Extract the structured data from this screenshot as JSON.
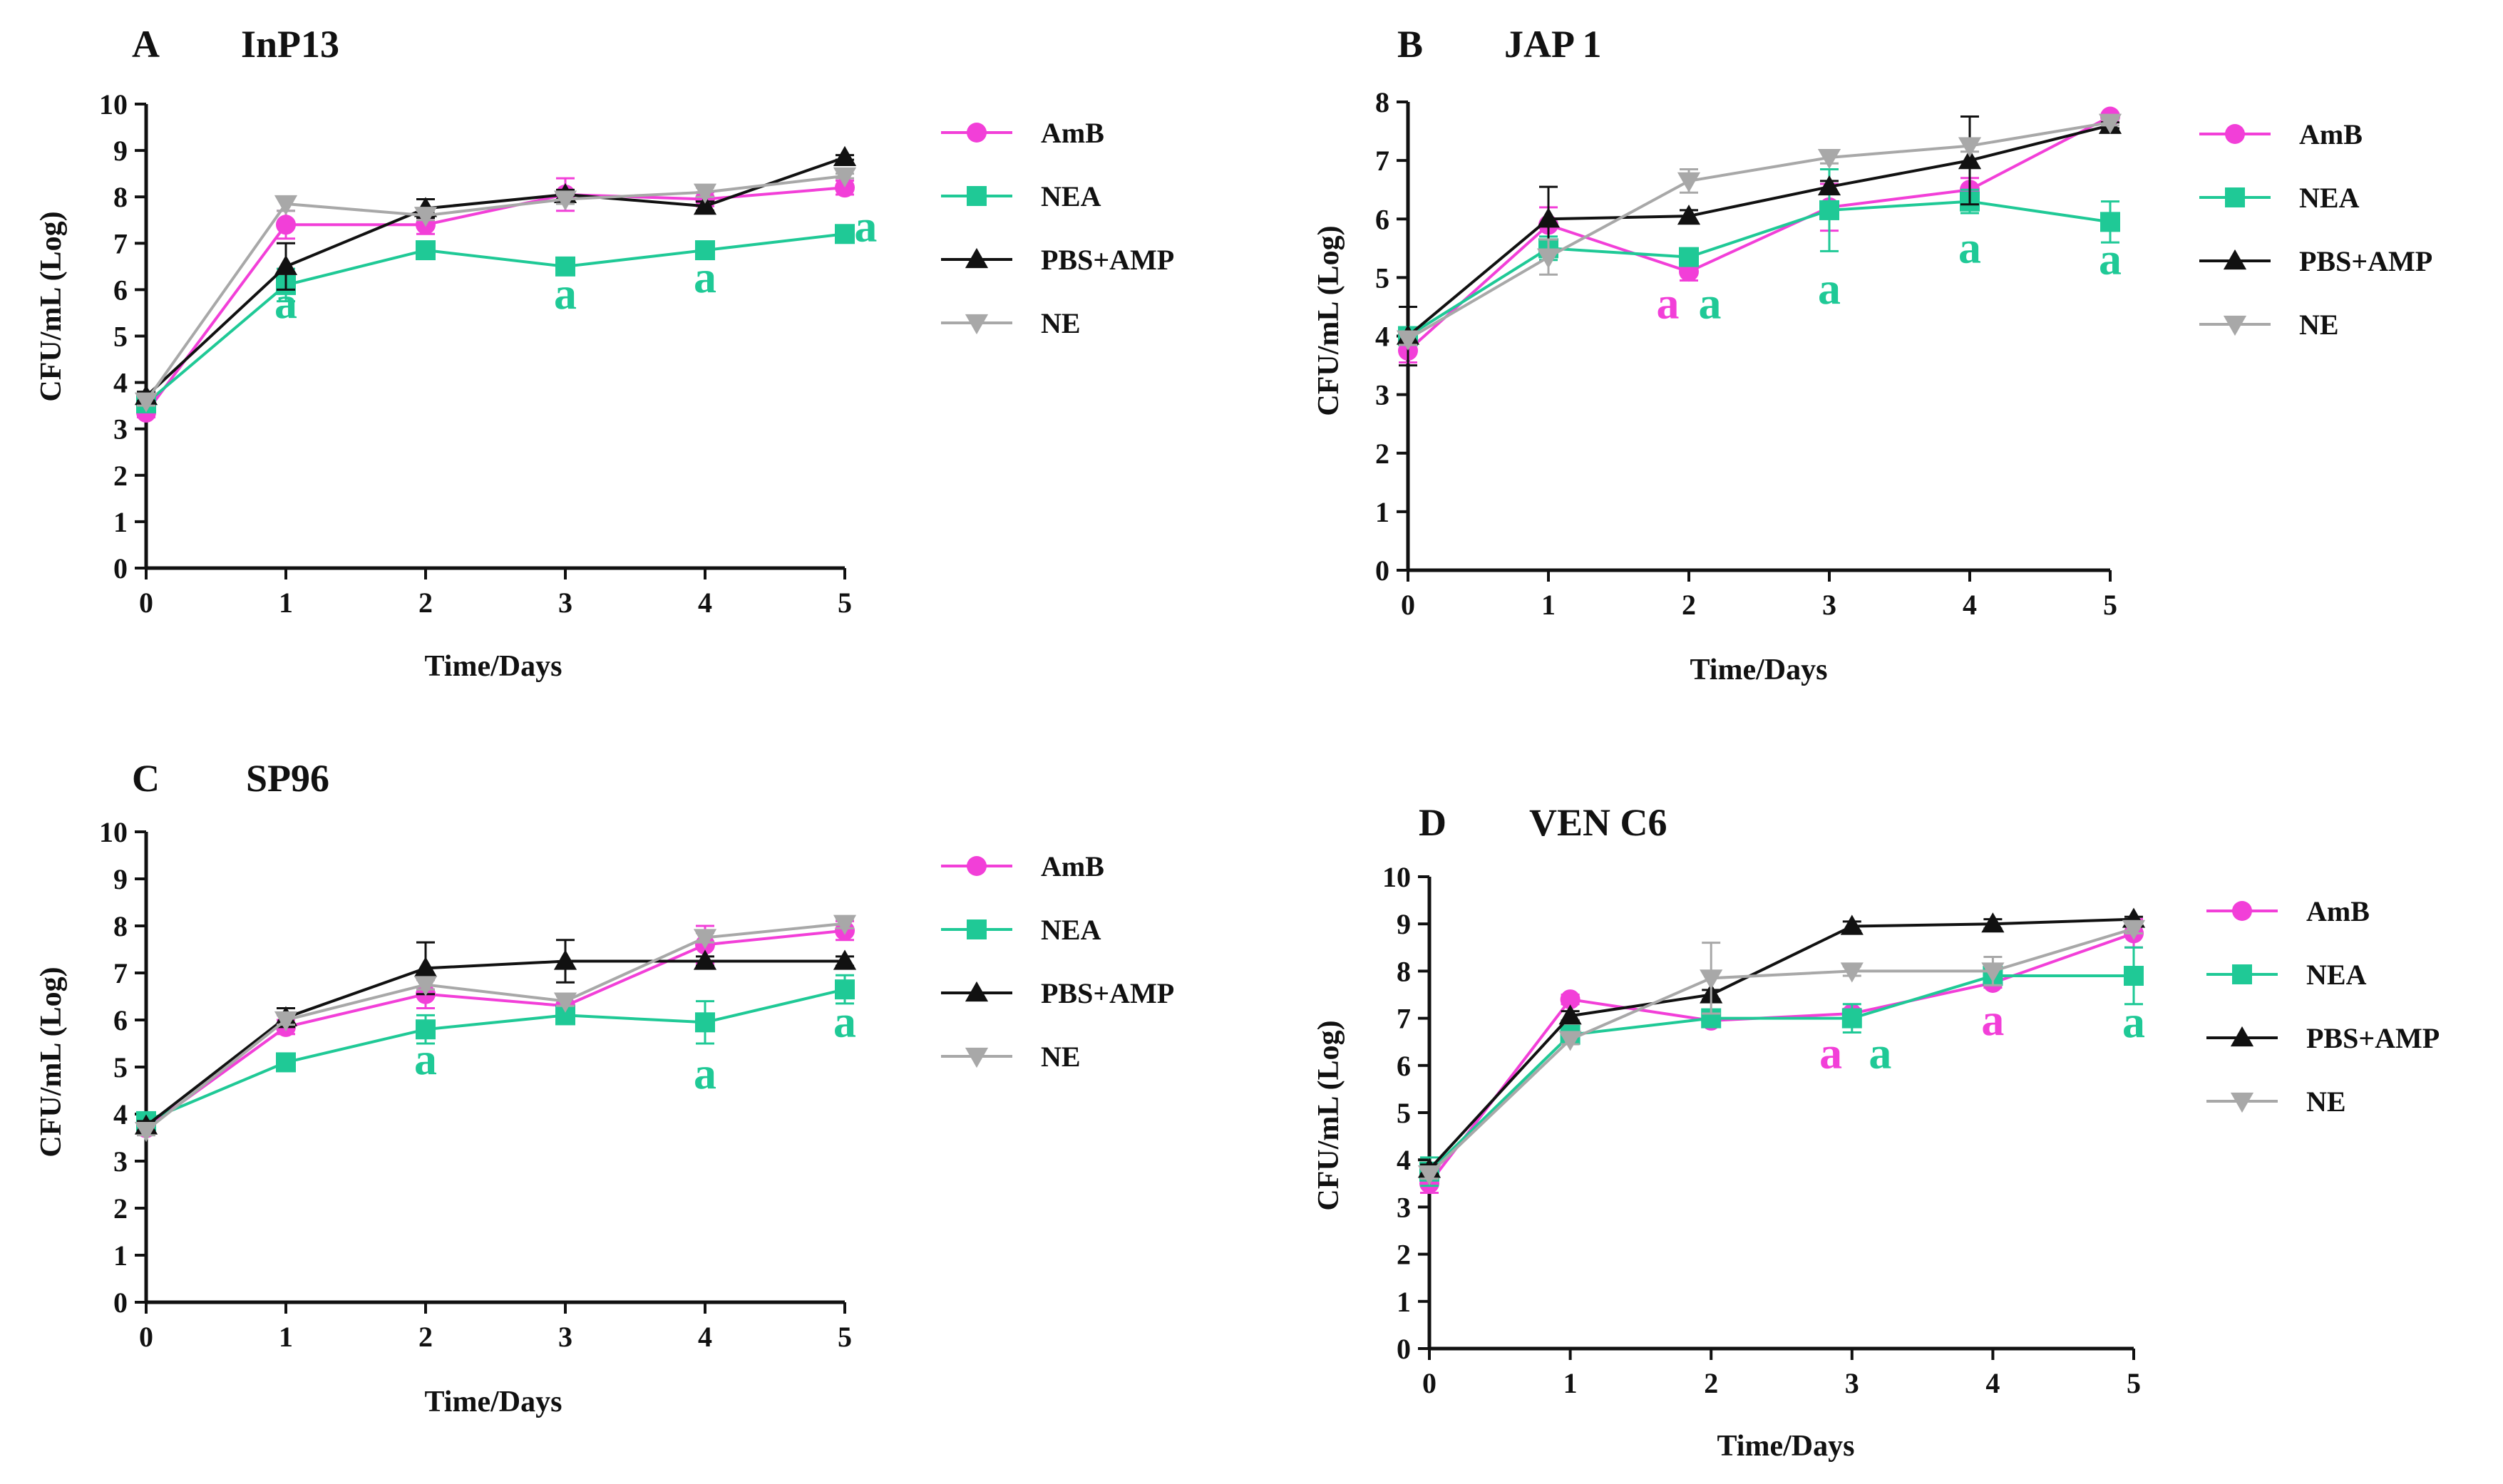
{
  "colors": {
    "AmB": "#F23FD8",
    "NEA": "#1FC996",
    "PBS+AMP": "#111111",
    "NE": "#A8A8A8"
  },
  "legend_order": [
    "AmB",
    "NEA",
    "PBS+AMP",
    "NE"
  ],
  "chart_data": [
    {
      "type": "line",
      "panel": "A",
      "title": "InP13",
      "xlabel": "Time/Days",
      "ylabel": "CFU/mL  (Log)",
      "x": [
        0,
        1,
        2,
        3,
        4,
        5
      ],
      "xlim": [
        0,
        5
      ],
      "ylim": [
        0,
        10
      ],
      "yticks": [
        0,
        1,
        2,
        3,
        4,
        5,
        6,
        7,
        8,
        9,
        10
      ],
      "xticks": [
        0,
        1,
        2,
        3,
        4,
        5
      ],
      "legend_position": "right",
      "series": [
        {
          "name": "AmB",
          "marker": "circle",
          "values": [
            3.35,
            7.4,
            7.4,
            8.05,
            7.95,
            8.2
          ],
          "err": [
            0.1,
            0.3,
            0.2,
            0.35,
            0.15,
            0.15
          ]
        },
        {
          "name": "NEA",
          "marker": "square",
          "values": [
            3.55,
            6.1,
            6.85,
            6.5,
            6.85,
            7.2
          ],
          "err": [
            0.1,
            0.35,
            0.1,
            0.1,
            0.1,
            0.1
          ]
        },
        {
          "name": "PBS+AMP",
          "marker": "triangle-up",
          "values": [
            3.7,
            6.5,
            7.75,
            8.05,
            7.8,
            8.85
          ],
          "err": [
            0.1,
            0.5,
            0.2,
            0.1,
            0.1,
            0.05
          ]
        },
        {
          "name": "NE",
          "marker": "triangle-down",
          "values": [
            3.6,
            7.85,
            7.6,
            7.95,
            8.1,
            8.45
          ],
          "err": [
            0.1,
            0.15,
            0.1,
            0.1,
            0.1,
            0.05
          ]
        }
      ],
      "annotations": [
        {
          "text": "a",
          "x": 1,
          "y": 5.7,
          "color_key": "NEA"
        },
        {
          "text": "a",
          "x": 3,
          "y": 5.9,
          "color_key": "NEA"
        },
        {
          "text": "a",
          "x": 4,
          "y": 6.25,
          "color_key": "NEA"
        },
        {
          "text": "a",
          "x": 5.15,
          "y": 7.35,
          "color_key": "NEA"
        }
      ]
    },
    {
      "type": "line",
      "panel": "B",
      "title": "JAP 1",
      "xlabel": "Time/Days",
      "ylabel": "CFU/mL  (Log)",
      "x": [
        0,
        1,
        2,
        3,
        4,
        5
      ],
      "xlim": [
        0,
        5
      ],
      "ylim": [
        0,
        8
      ],
      "yticks": [
        0,
        1,
        2,
        3,
        4,
        5,
        6,
        7,
        8
      ],
      "xticks": [
        0,
        1,
        2,
        3,
        4,
        5
      ],
      "legend_position": "right",
      "series": [
        {
          "name": "AmB",
          "marker": "circle",
          "values": [
            3.75,
            5.9,
            5.1,
            6.2,
            6.5,
            7.75
          ],
          "err": [
            0.2,
            0.3,
            0.15,
            0.4,
            0.2,
            0.05
          ]
        },
        {
          "name": "NEA",
          "marker": "square",
          "values": [
            4.0,
            5.5,
            5.35,
            6.15,
            6.3,
            5.95
          ],
          "err": [
            0.1,
            0.2,
            0.1,
            0.7,
            0.2,
            0.35
          ]
        },
        {
          "name": "PBS+AMP",
          "marker": "triangle-up",
          "values": [
            4.0,
            6.0,
            6.05,
            6.55,
            7.0,
            7.6
          ],
          "err": [
            0.5,
            0.55,
            0.1,
            0.1,
            0.75,
            0.05
          ]
        },
        {
          "name": "NE",
          "marker": "triangle-down",
          "values": [
            3.95,
            5.35,
            6.65,
            7.05,
            7.25,
            7.65
          ],
          "err": [
            0.1,
            0.3,
            0.2,
            0.1,
            0.1,
            0.05
          ]
        }
      ],
      "annotations": [
        {
          "text": "a",
          "x": 1.85,
          "y": 4.55,
          "color_key": "AmB"
        },
        {
          "text": "a",
          "x": 2.15,
          "y": 4.55,
          "color_key": "NEA"
        },
        {
          "text": "a",
          "x": 3,
          "y": 4.8,
          "color_key": "NEA"
        },
        {
          "text": "a",
          "x": 4,
          "y": 5.5,
          "color_key": "NEA"
        },
        {
          "text": "a",
          "x": 5,
          "y": 5.3,
          "color_key": "NEA"
        }
      ]
    },
    {
      "type": "line",
      "panel": "C",
      "title": "SP96",
      "xlabel": "Time/Days",
      "ylabel": "CFU/mL  (Log)",
      "x": [
        0,
        1,
        2,
        3,
        4,
        5
      ],
      "xlim": [
        0,
        5
      ],
      "ylim": [
        0,
        10
      ],
      "yticks": [
        0,
        1,
        2,
        3,
        4,
        5,
        6,
        7,
        8,
        9,
        10
      ],
      "xticks": [
        0,
        1,
        2,
        3,
        4,
        5
      ],
      "legend_position": "right",
      "series": [
        {
          "name": "AmB",
          "marker": "circle",
          "values": [
            3.7,
            5.85,
            6.55,
            6.3,
            7.6,
            7.9
          ],
          "err": [
            0.1,
            0.15,
            0.3,
            0.2,
            0.4,
            0.2
          ]
        },
        {
          "name": "NEA",
          "marker": "square",
          "values": [
            3.85,
            5.1,
            5.8,
            6.1,
            5.95,
            6.65
          ],
          "err": [
            0.1,
            0.1,
            0.3,
            0.1,
            0.45,
            0.3
          ]
        },
        {
          "name": "PBS+AMP",
          "marker": "triangle-up",
          "values": [
            3.75,
            6.05,
            7.1,
            7.25,
            7.25,
            7.25
          ],
          "err": [
            0.1,
            0.2,
            0.55,
            0.45,
            0.1,
            0.1
          ]
        },
        {
          "name": "NE",
          "marker": "triangle-down",
          "values": [
            3.65,
            6.0,
            6.75,
            6.4,
            7.75,
            8.05
          ],
          "err": [
            0.1,
            0.1,
            0.1,
            0.1,
            0.1,
            0.1
          ]
        }
      ],
      "annotations": [
        {
          "text": "a",
          "x": 2,
          "y": 5.15,
          "color_key": "NEA"
        },
        {
          "text": "a",
          "x": 4,
          "y": 4.85,
          "color_key": "NEA"
        },
        {
          "text": "a",
          "x": 5,
          "y": 5.95,
          "color_key": "NEA"
        }
      ]
    },
    {
      "type": "line",
      "panel": "D",
      "title": "VEN C6",
      "xlabel": "Time/Days",
      "ylabel": "CFU/mL  (Log)",
      "x": [
        0,
        1,
        2,
        3,
        4,
        5
      ],
      "xlim": [
        0,
        5
      ],
      "ylim": [
        0,
        10
      ],
      "yticks": [
        0,
        1,
        2,
        3,
        4,
        5,
        6,
        7,
        8,
        9,
        10
      ],
      "xticks": [
        0,
        1,
        2,
        3,
        4,
        5
      ],
      "legend_position": "right",
      "series": [
        {
          "name": "AmB",
          "marker": "circle",
          "values": [
            3.5,
            7.4,
            6.95,
            7.1,
            7.75,
            8.8
          ],
          "err": [
            0.2,
            0.1,
            0.1,
            0.1,
            0.1,
            0.3
          ]
        },
        {
          "name": "NEA",
          "marker": "square",
          "values": [
            3.75,
            6.65,
            7.0,
            7.0,
            7.9,
            7.9
          ],
          "err": [
            0.3,
            0.1,
            0.1,
            0.3,
            0.2,
            0.6
          ]
        },
        {
          "name": "PBS+AMP",
          "marker": "triangle-up",
          "values": [
            3.8,
            7.05,
            7.5,
            8.95,
            9.0,
            9.1
          ],
          "err": [
            0.1,
            0.1,
            0.1,
            0.1,
            0.1,
            0.05
          ]
        },
        {
          "name": "NE",
          "marker": "triangle-down",
          "values": [
            3.7,
            6.55,
            7.85,
            8.0,
            8.0,
            8.9
          ],
          "err": [
            0.1,
            0.1,
            0.75,
            0.1,
            0.3,
            0.1
          ]
        }
      ],
      "annotations": [
        {
          "text": "a",
          "x": 2.85,
          "y": 6.25,
          "color_key": "AmB"
        },
        {
          "text": "a",
          "x": 3.2,
          "y": 6.25,
          "color_key": "NEA"
        },
        {
          "text": "a",
          "x": 4,
          "y": 6.95,
          "color_key": "AmB"
        },
        {
          "text": "a",
          "x": 5,
          "y": 6.9,
          "color_key": "NEA"
        }
      ]
    }
  ]
}
